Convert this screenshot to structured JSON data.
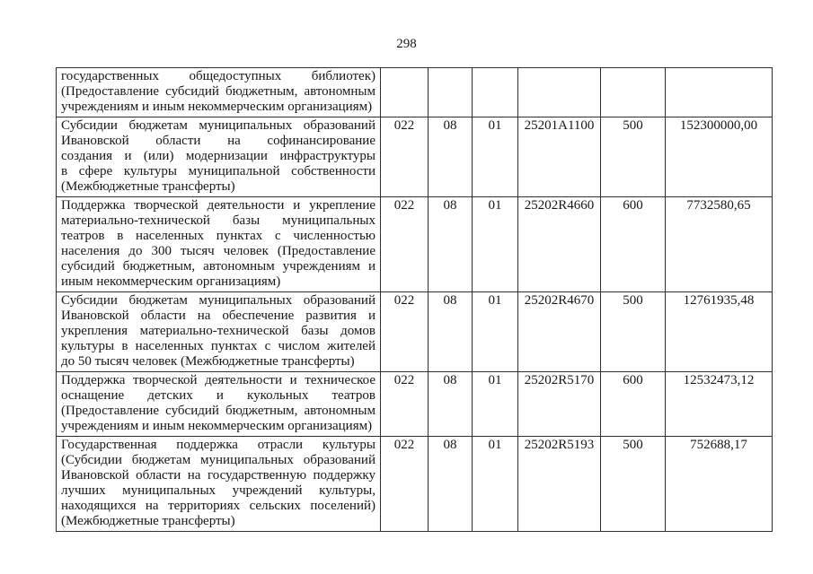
{
  "page": {
    "number": "298"
  },
  "colors": {
    "ink": "#161616",
    "table_border": "#2e2e2e",
    "paper": "#ffffff"
  },
  "table": {
    "rows": [
      {
        "name_lines": [
          "государственных общедоступных библиотек)",
          "(Предоставление субсидий бюджетным, автономным",
          "учреждениям и иным некоммерческим организациям)"
        ],
        "grbs": "",
        "rz": "",
        "pr": "",
        "csr": "",
        "vr": "",
        "amount": ""
      },
      {
        "name_lines": [
          "Субсидии бюджетам муниципальных образований",
          "Ивановской области на софинансирование",
          "создания и (или) модернизации инфраструктуры",
          "в сфере культуры муниципальной собственности",
          "(Межбюджетные трансферты)"
        ],
        "grbs": "022",
        "rz": "08",
        "pr": "01",
        "csr": "25201A1100",
        "vr": "500",
        "amount": "152300000,00"
      },
      {
        "name_lines": [
          "Поддержка творческой деятельности и укрепление",
          "материально-технической базы муниципальных",
          "театров в населенных пунктах с численностью",
          "населения до 300 тысяч человек (Предоставление",
          "субсидий бюджетным, автономным учреждениям и",
          "иным некоммерческим организациям)"
        ],
        "grbs": "022",
        "rz": "08",
        "pr": "01",
        "csr": "25202R4660",
        "vr": "600",
        "amount": "7732580,65"
      },
      {
        "name_lines": [
          "Субсидии бюджетам муниципальных образований",
          "Ивановской области на обеспечение развития и",
          "укрепления материально-технической базы домов",
          "культуры в населенных пунктах с числом жителей",
          "до 50 тысяч человек (Межбюджетные трансферты)"
        ],
        "grbs": "022",
        "rz": "08",
        "pr": "01",
        "csr": "25202R4670",
        "vr": "500",
        "amount": "12761935,48"
      },
      {
        "name_lines": [
          "Поддержка творческой деятельности и техническое",
          "оснащение детских и кукольных театров",
          "(Предоставление субсидий бюджетным, автономным",
          "учреждениям и иным некоммерческим организациям)"
        ],
        "grbs": "022",
        "rz": "08",
        "pr": "01",
        "csr": "25202R5170",
        "vr": "600",
        "amount": "12532473,12"
      },
      {
        "name_lines": [
          "Государственная поддержка отрасли культуры",
          "(Субсидии бюджетам муниципальных образований",
          "Ивановской области на государственную поддержку",
          "лучших муниципальных учреждений культуры,",
          "находящихся на территориях сельских поселений)",
          "(Межбюджетные трансферты)"
        ],
        "grbs": "022",
        "rz": "08",
        "pr": "01",
        "csr": "25202R5193",
        "vr": "500",
        "amount": "752688,17"
      }
    ]
  }
}
